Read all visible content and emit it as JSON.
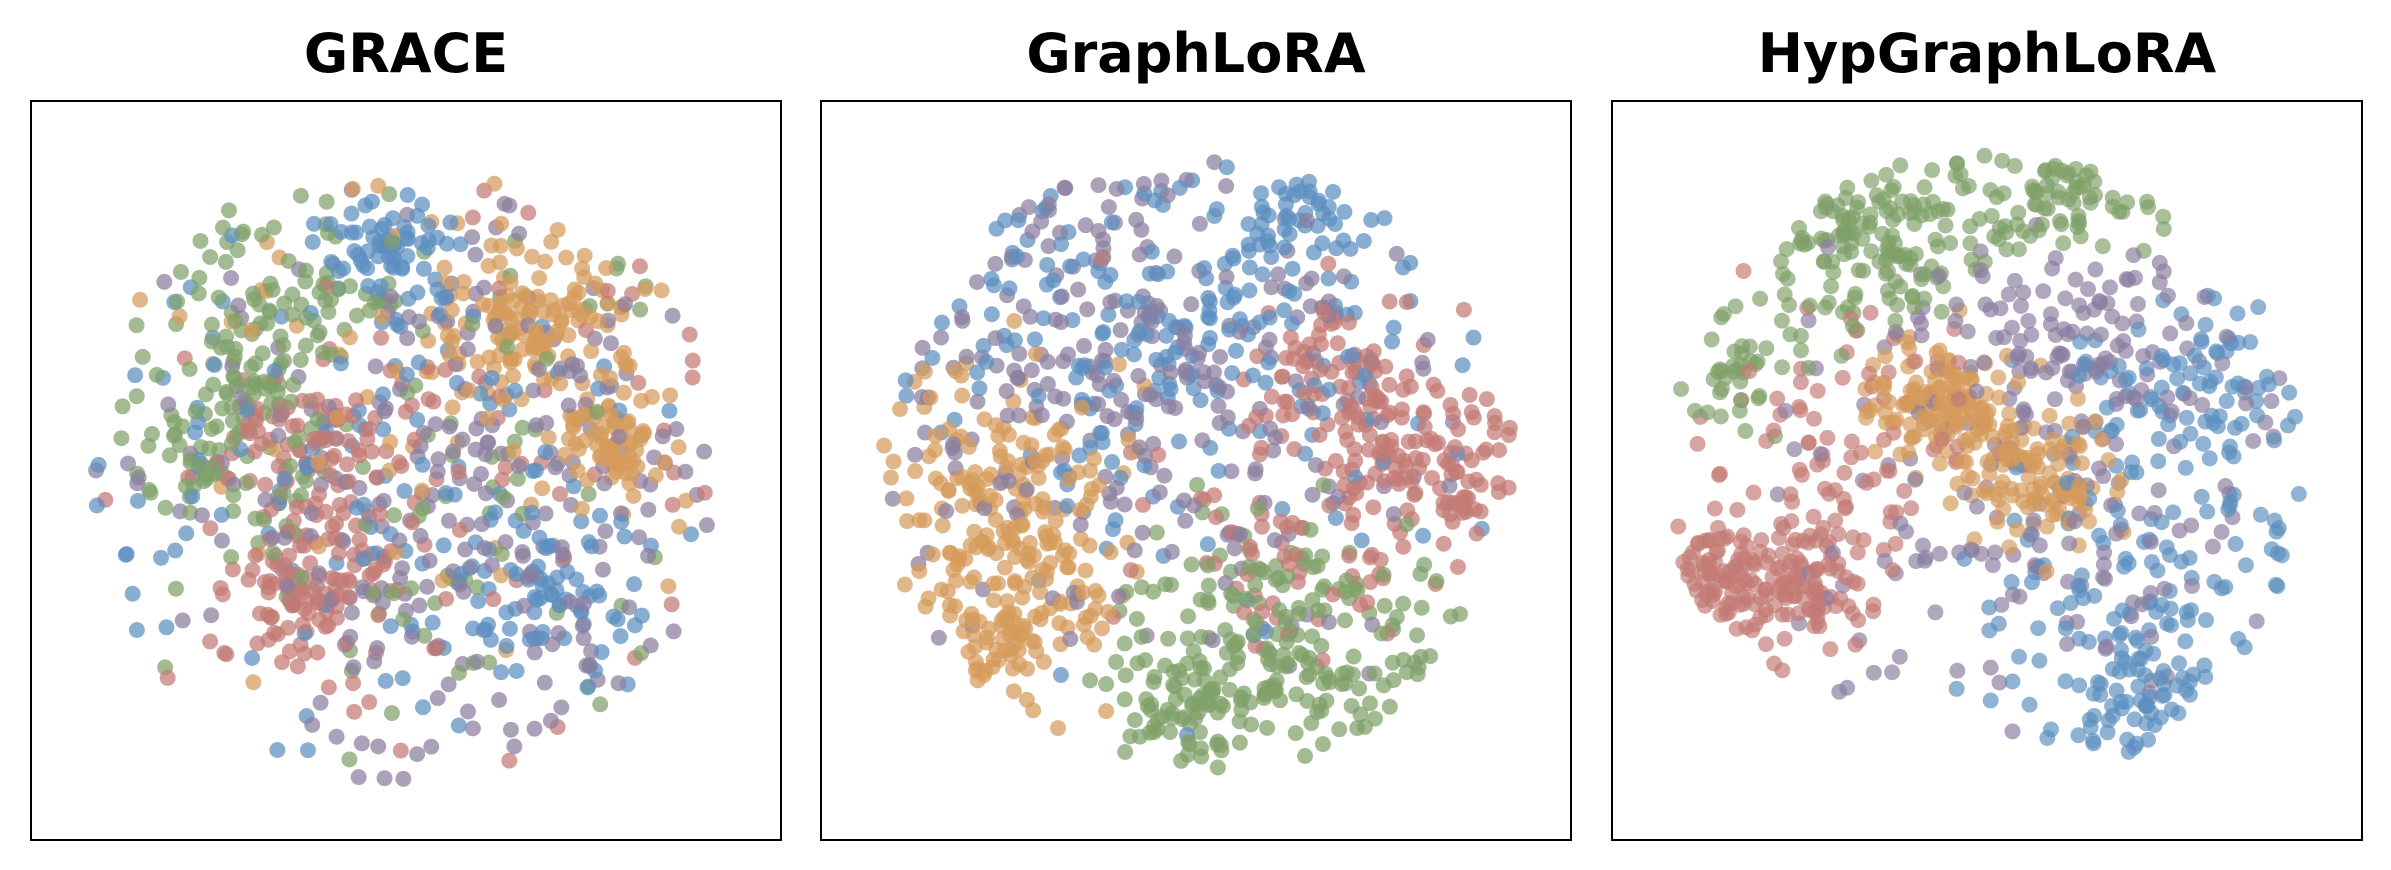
{
  "chart_data": [
    {
      "type": "scatter",
      "title": "GRACE",
      "xlabel": "",
      "ylabel": "",
      "xlim": [
        -1.05,
        1.05
      ],
      "ylim": [
        -1.05,
        1.05
      ],
      "grid": false,
      "legend": "none",
      "axis_ticks": "hidden",
      "points_per_series": 260,
      "marker_alpha": 0.72,
      "series": [
        {
          "color": "#5b8fc0",
          "clusters": [
            {
              "x": 0,
              "y": 0,
              "sx": 0.52,
              "sy": 0.52,
              "w": 0.55
            },
            {
              "x": 0.42,
              "y": -0.42,
              "sx": 0.15,
              "sy": 0.15,
              "w": 0.25
            },
            {
              "x": -0.05,
              "y": 0.66,
              "sx": 0.1,
              "sy": 0.08,
              "w": 0.2
            }
          ]
        },
        {
          "color": "#c47a74",
          "clusters": [
            {
              "x": -0.32,
              "y": -0.36,
              "sx": 0.14,
              "sy": 0.12,
              "w": 0.4
            },
            {
              "x": -0.28,
              "y": 0.05,
              "sx": 0.14,
              "sy": 0.12,
              "w": 0.3
            },
            {
              "x": 0,
              "y": 0,
              "sx": 0.5,
              "sy": 0.5,
              "w": 0.3
            }
          ]
        },
        {
          "color": "#d59b5c",
          "clusters": [
            {
              "x": 0.38,
              "y": 0.45,
              "sx": 0.15,
              "sy": 0.13,
              "w": 0.5
            },
            {
              "x": 0.62,
              "y": 0.1,
              "sx": 0.1,
              "sy": 0.1,
              "w": 0.25
            },
            {
              "x": 0.1,
              "y": 0.3,
              "sx": 0.45,
              "sy": 0.45,
              "w": 0.25
            }
          ]
        },
        {
          "color": "#7fa169",
          "clusters": [
            {
              "x": -0.55,
              "y": 0.15,
              "sx": 0.16,
              "sy": 0.2,
              "w": 0.45
            },
            {
              "x": -0.3,
              "y": 0.55,
              "sx": 0.2,
              "sy": 0.15,
              "w": 0.2
            },
            {
              "x": 0,
              "y": 0,
              "sx": 0.5,
              "sy": 0.5,
              "w": 0.35
            }
          ]
        },
        {
          "color": "#8b7ea0",
          "clusters": [
            {
              "x": 0.15,
              "y": -0.05,
              "sx": 0.5,
              "sy": 0.5,
              "w": 1
            }
          ]
        }
      ]
    },
    {
      "type": "scatter",
      "title": "GraphLoRA",
      "xlabel": "",
      "ylabel": "",
      "xlim": [
        -1.05,
        1.05
      ],
      "ylim": [
        -1.05,
        1.05
      ],
      "grid": false,
      "legend": "none",
      "axis_ticks": "hidden",
      "points_per_series": 260,
      "marker_alpha": 0.72,
      "series": [
        {
          "color": "#5b8fc0",
          "clusters": [
            {
              "x": -0.1,
              "y": 0.45,
              "sx": 0.35,
              "sy": 0.28,
              "w": 0.65
            },
            {
              "x": 0.3,
              "y": 0.8,
              "sx": 0.12,
              "sy": 0.08,
              "w": 0.2
            },
            {
              "x": 0,
              "y": 0,
              "sx": 0.45,
              "sy": 0.45,
              "w": 0.15
            }
          ]
        },
        {
          "color": "#c47a74",
          "clusters": [
            {
              "x": 0.7,
              "y": 0.05,
              "sx": 0.14,
              "sy": 0.12,
              "w": 0.4
            },
            {
              "x": 0.4,
              "y": 0.3,
              "sx": 0.1,
              "sy": 0.12,
              "w": 0.25
            },
            {
              "x": 0.25,
              "y": -0.1,
              "sx": 0.3,
              "sy": 0.25,
              "w": 0.35
            }
          ]
        },
        {
          "color": "#d59b5c",
          "clusters": [
            {
              "x": -0.55,
              "y": -0.1,
              "sx": 0.18,
              "sy": 0.22,
              "w": 0.7
            },
            {
              "x": -0.55,
              "y": -0.5,
              "sx": 0.12,
              "sy": 0.12,
              "w": 0.3
            }
          ]
        },
        {
          "color": "#7fa169",
          "clusters": [
            {
              "x": 0.3,
              "y": -0.55,
              "sx": 0.25,
              "sy": 0.18,
              "w": 0.8
            },
            {
              "x": -0.1,
              "y": -0.7,
              "sx": 0.12,
              "sy": 0.1,
              "w": 0.2
            }
          ]
        },
        {
          "color": "#8b7ea0",
          "clusters": [
            {
              "x": -0.2,
              "y": 0.25,
              "sx": 0.45,
              "sy": 0.4,
              "w": 1
            }
          ]
        }
      ]
    },
    {
      "type": "scatter",
      "title": "HypGraphLoRA",
      "xlabel": "",
      "ylabel": "",
      "xlim": [
        -1.05,
        1.05
      ],
      "ylim": [
        -1.05,
        1.05
      ],
      "grid": false,
      "legend": "none",
      "axis_ticks": "hidden",
      "points_per_series": 260,
      "marker_alpha": 0.68,
      "series": [
        {
          "color": "#5b8fc0",
          "clusters": [
            {
              "x": 0.5,
              "y": -0.65,
              "sx": 0.13,
              "sy": 0.12,
              "w": 0.3
            },
            {
              "x": 0.6,
              "y": 0.25,
              "sx": 0.2,
              "sy": 0.12,
              "w": 0.3
            },
            {
              "x": 0.6,
              "y": -0.2,
              "sx": 0.2,
              "sy": 0.18,
              "w": 0.25
            },
            {
              "x": 0.2,
              "y": -0.35,
              "sx": 0.12,
              "sy": 0.2,
              "w": 0.15
            }
          ]
        },
        {
          "color": "#c47a74",
          "clusters": [
            {
              "x": -0.6,
              "y": -0.35,
              "sx": 0.15,
              "sy": 0.1,
              "w": 0.55
            },
            {
              "x": -0.85,
              "y": -0.3,
              "sx": 0.08,
              "sy": 0.08,
              "w": 0.15
            },
            {
              "x": -0.5,
              "y": 0.1,
              "sx": 0.2,
              "sy": 0.2,
              "w": 0.3
            }
          ]
        },
        {
          "color": "#d59b5c",
          "clusters": [
            {
              "x": -0.15,
              "y": 0.2,
              "sx": 0.1,
              "sy": 0.1,
              "w": 0.45
            },
            {
              "x": 0.08,
              "y": 0.05,
              "sx": 0.1,
              "sy": 0.1,
              "w": 0.35
            },
            {
              "x": 0.25,
              "y": -0.1,
              "sx": 0.1,
              "sy": 0.08,
              "w": 0.2
            }
          ]
        },
        {
          "color": "#7fa169",
          "clusters": [
            {
              "x": -0.35,
              "y": 0.7,
              "sx": 0.17,
              "sy": 0.15,
              "w": 0.55
            },
            {
              "x": 0.25,
              "y": 0.82,
              "sx": 0.15,
              "sy": 0.08,
              "w": 0.3
            },
            {
              "x": -0.75,
              "y": 0.3,
              "sx": 0.1,
              "sy": 0.08,
              "w": 0.15
            }
          ]
        },
        {
          "color": "#8b7ea0",
          "clusters": [
            {
              "x": 0.3,
              "y": 0.45,
              "sx": 0.3,
              "sy": 0.15,
              "w": 0.4
            },
            {
              "x": 0.2,
              "y": -0.05,
              "sx": 0.4,
              "sy": 0.35,
              "w": 0.6
            }
          ]
        }
      ]
    }
  ]
}
